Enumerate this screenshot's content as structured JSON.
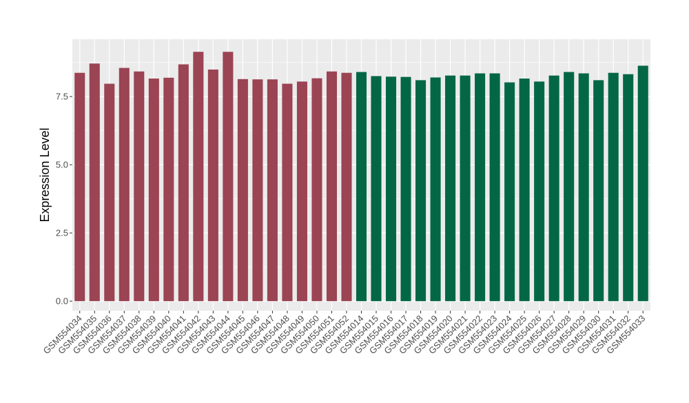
{
  "chart_data": {
    "type": "bar",
    "title": "",
    "xlabel": "",
    "ylabel": "Expression Level",
    "ylim": [
      -0.35,
      9.6
    ],
    "yticks": [
      0.0,
      2.5,
      5.0,
      7.5
    ],
    "ytick_labels": [
      "0.0",
      "2.5",
      "5.0",
      "7.5"
    ],
    "grid": true,
    "legend": "none",
    "panel_color": "#ebebeb",
    "grid_color": "#ffffff",
    "categories": [
      "GSM554034",
      "GSM554035",
      "GSM554036",
      "GSM554037",
      "GSM554038",
      "GSM554039",
      "GSM554040",
      "GSM554041",
      "GSM554042",
      "GSM554043",
      "GSM554044",
      "GSM554045",
      "GSM554046",
      "GSM554047",
      "GSM554048",
      "GSM554049",
      "GSM554050",
      "GSM554051",
      "GSM554052",
      "GSM554014",
      "GSM554015",
      "GSM554016",
      "GSM554017",
      "GSM554018",
      "GSM554019",
      "GSM554020",
      "GSM554021",
      "GSM554022",
      "GSM554023",
      "GSM554024",
      "GSM554025",
      "GSM554026",
      "GSM554027",
      "GSM554028",
      "GSM554029",
      "GSM554030",
      "GSM554031",
      "GSM554032",
      "GSM554033"
    ],
    "series": [
      {
        "color": "#9b4453",
        "values": [
          8.37,
          8.71,
          7.97,
          8.55,
          8.42,
          8.16,
          8.19,
          8.68,
          9.14,
          8.49,
          9.14,
          8.14,
          8.13,
          8.13,
          7.97,
          8.05,
          8.17,
          8.42,
          8.37,
          null,
          null,
          null,
          null,
          null,
          null,
          null,
          null,
          null,
          null,
          null,
          null,
          null,
          null,
          null,
          null,
          null,
          null,
          null,
          null
        ]
      },
      {
        "color": "#036746",
        "values": [
          null,
          null,
          null,
          null,
          null,
          null,
          null,
          null,
          null,
          null,
          null,
          null,
          null,
          null,
          null,
          null,
          null,
          null,
          null,
          8.4,
          8.25,
          8.23,
          8.22,
          8.1,
          8.2,
          8.27,
          8.27,
          8.35,
          8.35,
          8.02,
          8.16,
          8.05,
          8.27,
          8.4,
          8.35,
          8.1,
          8.37,
          8.32,
          8.63
        ]
      }
    ]
  }
}
